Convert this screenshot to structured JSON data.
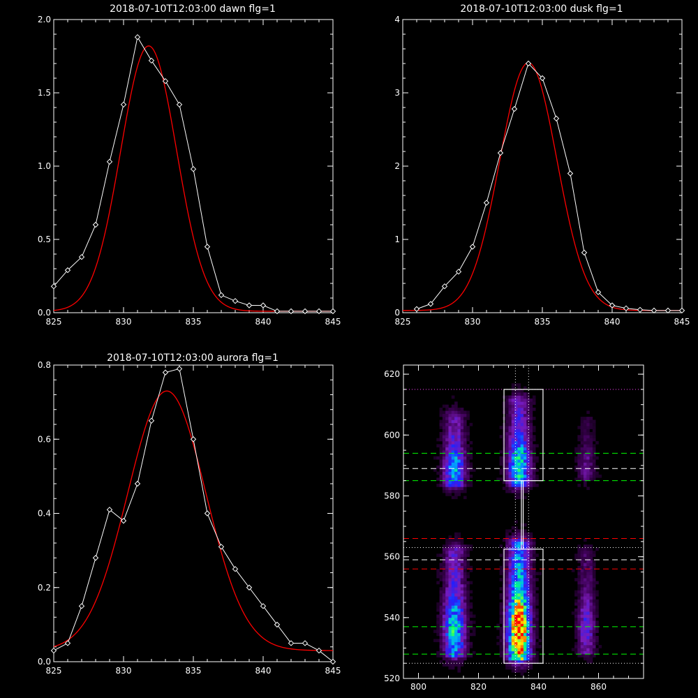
{
  "colors": {
    "background": "#000000",
    "axes": "#ffffff",
    "data": "#ffffff",
    "fit": "#ff0000"
  },
  "chart_data": [
    {
      "type": "line",
      "title": "2018-07-10T12:03:00 dawn flg=1",
      "xlim": [
        825,
        845
      ],
      "ylim": [
        0,
        2
      ],
      "xticks": [
        "825",
        "830",
        "835",
        "840",
        "845"
      ],
      "yticks": [
        "0.0",
        "0.5",
        "1.0",
        "1.5",
        "2.0"
      ],
      "xtick_values": [
        825,
        830,
        835,
        840,
        845
      ],
      "ytick_values": [
        0,
        0.5,
        1.0,
        1.5,
        2.0
      ],
      "series": [
        {
          "style": "data-diamonds",
          "x": [
            825,
            826,
            827,
            828,
            829,
            830,
            831,
            832,
            833,
            834,
            835,
            836,
            837,
            838,
            839,
            840,
            841,
            842,
            843,
            844,
            845
          ],
          "y": [
            0.18,
            0.29,
            0.38,
            0.6,
            1.03,
            1.42,
            1.88,
            1.72,
            1.58,
            1.42,
            0.98,
            0.45,
            0.12,
            0.08,
            0.05,
            0.05,
            0.01,
            0.01,
            0.01,
            0.01,
            0.01
          ]
        },
        {
          "style": "gaussian-fit",
          "amplitude": 1.81,
          "center": 831.8,
          "sigma": 2.0,
          "offset": 0.01
        }
      ]
    },
    {
      "type": "line",
      "title": "2018-07-10T12:03:00 dusk flg=1",
      "xlim": [
        825,
        845
      ],
      "ylim": [
        0,
        4
      ],
      "xticks": [
        "825",
        "830",
        "835",
        "840",
        "845"
      ],
      "yticks": [
        "0",
        "1",
        "2",
        "3",
        "4"
      ],
      "xtick_values": [
        825,
        830,
        835,
        840,
        845
      ],
      "ytick_values": [
        0,
        1,
        2,
        3,
        4
      ],
      "series": [
        {
          "style": "data-diamonds",
          "x": [
            826,
            827,
            828,
            829,
            830,
            831,
            832,
            833,
            834,
            835,
            836,
            837,
            838,
            839,
            840,
            841,
            842,
            843,
            844,
            845
          ],
          "y": [
            0.05,
            0.12,
            0.36,
            0.56,
            0.9,
            1.5,
            2.18,
            2.78,
            3.4,
            3.2,
            2.65,
            1.9,
            0.82,
            0.28,
            0.1,
            0.06,
            0.04,
            0.03,
            0.03,
            0.03
          ]
        },
        {
          "style": "gaussian-fit",
          "amplitude": 3.38,
          "center": 834.0,
          "sigma": 2.05,
          "offset": 0.03
        }
      ]
    },
    {
      "type": "line",
      "title": "2018-07-10T12:03:00 aurora flg=1",
      "xlim": [
        825,
        845
      ],
      "ylim": [
        0,
        0.8
      ],
      "xticks": [
        "825",
        "830",
        "835",
        "840",
        "845"
      ],
      "yticks": [
        "0.0",
        "0.2",
        "0.4",
        "0.6",
        "0.8"
      ],
      "xtick_values": [
        825,
        830,
        835,
        840,
        845
      ],
      "ytick_values": [
        0,
        0.2,
        0.4,
        0.6,
        0.8
      ],
      "series": [
        {
          "style": "data-diamonds",
          "x": [
            825,
            826,
            827,
            828,
            829,
            830,
            831,
            832,
            833,
            834,
            835,
            836,
            837,
            838,
            839,
            840,
            841,
            842,
            843,
            844,
            845
          ],
          "y": [
            0.03,
            0.05,
            0.15,
            0.28,
            0.41,
            0.38,
            0.48,
            0.65,
            0.78,
            0.79,
            0.6,
            0.4,
            0.31,
            0.25,
            0.2,
            0.15,
            0.1,
            0.05,
            0.05,
            0.03,
            0.0
          ]
        },
        {
          "style": "gaussian-fit",
          "amplitude": 0.7,
          "center": 833.1,
          "sigma": 2.8,
          "offset": 0.03
        }
      ]
    },
    {
      "type": "heatmap",
      "title": "",
      "xlim": [
        795,
        875
      ],
      "ylim": [
        520,
        623
      ],
      "xticks": [
        "800",
        "820",
        "840",
        "860"
      ],
      "yticks": [
        "520",
        "540",
        "560",
        "580",
        "600",
        "620"
      ],
      "xtick_values": [
        800,
        820,
        840,
        860
      ],
      "ytick_values": [
        520,
        540,
        560,
        580,
        600,
        620
      ],
      "colormap": [
        "#000000",
        "#3a0050",
        "#7a1ab8",
        "#2020ff",
        "#00aaff",
        "#00ff80",
        "#ffff00",
        "#ff6000",
        "#ff0000"
      ],
      "columns": [
        {
          "x": 812,
          "halfwidth": 5,
          "segments": [
            {
              "y0": 527,
              "y1": 563,
              "peak": 0.55
            },
            {
              "y0": 583,
              "y1": 607,
              "peak": 0.5
            }
          ]
        },
        {
          "x": 833.5,
          "halfwidth": 5,
          "segments": [
            {
              "y0": 526,
              "y1": 565,
              "peak": 1.0
            },
            {
              "y0": 583,
              "y1": 612,
              "peak": 0.6
            }
          ]
        },
        {
          "x": 856,
          "halfwidth": 4,
          "segments": [
            {
              "y0": 528,
              "y1": 562,
              "peak": 0.3
            },
            {
              "y0": 585,
              "y1": 605,
              "peak": 0.18
            }
          ]
        }
      ],
      "boxes": [
        {
          "x0": 828.5,
          "x1": 841.5,
          "y0": 525,
          "y1": 562.5
        },
        {
          "x0": 828.5,
          "x1": 841.5,
          "y0": 585,
          "y1": 615
        },
        {
          "x0": 834.3,
          "x1": 834.9,
          "y0": 562.5,
          "y1": 585
        }
      ],
      "hlines": [
        {
          "y": 615,
          "color": "#ff40ff",
          "style": "dotted"
        },
        {
          "y": 594,
          "color": "#00ff00",
          "style": "dashed"
        },
        {
          "y": 589,
          "color": "#ffffff",
          "style": "dashed"
        },
        {
          "y": 585,
          "color": "#00ff00",
          "style": "dashed"
        },
        {
          "y": 566,
          "color": "#ff0000",
          "style": "dashed"
        },
        {
          "y": 563,
          "color": "#ffffff",
          "style": "dotted"
        },
        {
          "y": 559,
          "color": "#ffffff",
          "style": "dashed"
        },
        {
          "y": 556,
          "color": "#ff0000",
          "style": "dashed"
        },
        {
          "y": 537,
          "color": "#00ff00",
          "style": "dashed"
        },
        {
          "y": 528,
          "color": "#00ff00",
          "style": "dashed"
        },
        {
          "y": 525,
          "color": "#ffffff",
          "style": "dotted"
        }
      ],
      "vlines": [
        {
          "x": 832.3,
          "color": "#ffffff",
          "style": "dotted"
        },
        {
          "x": 836.7,
          "color": "#ffffff",
          "style": "dotted"
        }
      ]
    }
  ]
}
